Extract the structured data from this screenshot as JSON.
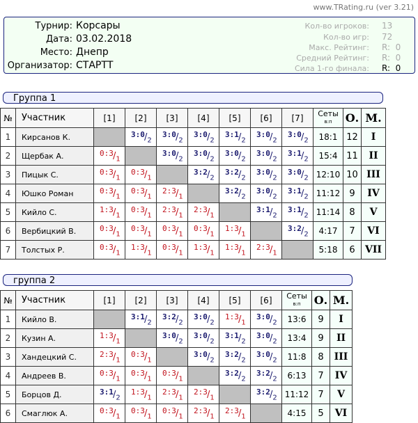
{
  "credit": "www.TRating.ru (ver 3.21)",
  "info": {
    "labels": [
      "Турнир:",
      "Дата:",
      "Место:",
      "Организатор:"
    ],
    "values": [
      "Корсары",
      "03.02.2018",
      "Днепр",
      "СТАРТТ"
    ],
    "stats": [
      {
        "label": "Кол-во игроков:",
        "value": "13"
      },
      {
        "label": "Кол-во игр:",
        "value": "72"
      },
      {
        "label": "Макс. Рейтинг:",
        "value": "R:  0"
      },
      {
        "label": "Средний Рейтинг:",
        "value": "R:  0"
      },
      {
        "label": "Сила 1-го финала:",
        "value": "R:  0"
      }
    ]
  },
  "colors": {
    "win": "#1a1a6e",
    "loss": "#c0101a",
    "diagonal": "#c0c0c0"
  },
  "headers": {
    "num": "№",
    "participant": "Участник",
    "sets": "Сеты",
    "sets_sub": "в:п",
    "points": "О.",
    "place": "М."
  },
  "groups": [
    {
      "title": "Группа 1",
      "players": [
        {
          "num": "1",
          "name": "Кирсанов К.",
          "results": [
            null,
            "3:0/2",
            "3:0/2",
            "3:0/2",
            "3:1/2",
            "3:0/2",
            "3:0/2"
          ],
          "sets": "18:1",
          "points": "12",
          "place": "I"
        },
        {
          "num": "2",
          "name": "Щербак А.",
          "results": [
            "0:3/1",
            null,
            "3:0/2",
            "3:0/2",
            "3:0/2",
            "3:0/2",
            "3:1/2"
          ],
          "sets": "15:4",
          "points": "11",
          "place": "II"
        },
        {
          "num": "3",
          "name": "Пицык С.",
          "results": [
            "0:3/1",
            "0:3/1",
            null,
            "3:2/2",
            "3:2/2",
            "3:0/2",
            "3:0/2"
          ],
          "sets": "12:10",
          "points": "10",
          "place": "III"
        },
        {
          "num": "4",
          "name": "Юшко Роман",
          "results": [
            "0:3/1",
            "0:3/1",
            "2:3/1",
            null,
            "3:2/2",
            "3:0/2",
            "3:1/2"
          ],
          "sets": "11:12",
          "points": "9",
          "place": "IV"
        },
        {
          "num": "5",
          "name": "Кийло С.",
          "results": [
            "1:3/1",
            "0:3/1",
            "2:3/1",
            "2:3/1",
            null,
            "3:1/2",
            "3:1/2"
          ],
          "sets": "11:14",
          "points": "8",
          "place": "V"
        },
        {
          "num": "6",
          "name": "Вербицкий В.",
          "results": [
            "0:3/1",
            "0:3/1",
            "0:3/1",
            "0:3/1",
            "1:3/1",
            null,
            "3:2/2"
          ],
          "sets": "4:17",
          "points": "7",
          "place": "VI"
        },
        {
          "num": "7",
          "name": "Толстых Р.",
          "results": [
            "0:3/1",
            "1:3/1",
            "0:3/1",
            "1:3/1",
            "1:3/1",
            "2:3/1",
            null
          ],
          "sets": "5:18",
          "points": "6",
          "place": "VII"
        }
      ]
    },
    {
      "title": "группа 2",
      "players": [
        {
          "num": "1",
          "name": "Кийло В.",
          "results": [
            null,
            "3:1/2",
            "3:2/2",
            "3:0/2",
            "1:3/1",
            "3:0/2"
          ],
          "sets": "13:6",
          "points": "9",
          "place": "I"
        },
        {
          "num": "2",
          "name": "Кузин А.",
          "results": [
            "1:3/1",
            null,
            "3:0/2",
            "3:0/2",
            "3:1/2",
            "3:0/2"
          ],
          "sets": "13:4",
          "points": "9",
          "place": "II"
        },
        {
          "num": "3",
          "name": "Хандецкий С.",
          "results": [
            "2:3/1",
            "0:3/1",
            null,
            "3:0/2",
            "3:2/2",
            "3:0/2"
          ],
          "sets": "11:8",
          "points": "8",
          "place": "III"
        },
        {
          "num": "4",
          "name": "Андреев В.",
          "results": [
            "0:3/1",
            "0:3/1",
            "0:3/1",
            null,
            "3:2/2",
            "3:2/2"
          ],
          "sets": "6:13",
          "points": "7",
          "place": "IV"
        },
        {
          "num": "5",
          "name": "Борцов Д.",
          "results": [
            "3:1/2",
            "1:3/1",
            "2:3/1",
            "2:3/1",
            null,
            "3:2/2"
          ],
          "sets": "11:12",
          "points": "7",
          "place": "V"
        },
        {
          "num": "6",
          "name": "Смаглюк А.",
          "results": [
            "0:3/1",
            "0:3/1",
            "0:3/1",
            "2:3/1",
            "2:3/1",
            null
          ],
          "sets": "4:15",
          "points": "5",
          "place": "VI"
        }
      ]
    }
  ]
}
